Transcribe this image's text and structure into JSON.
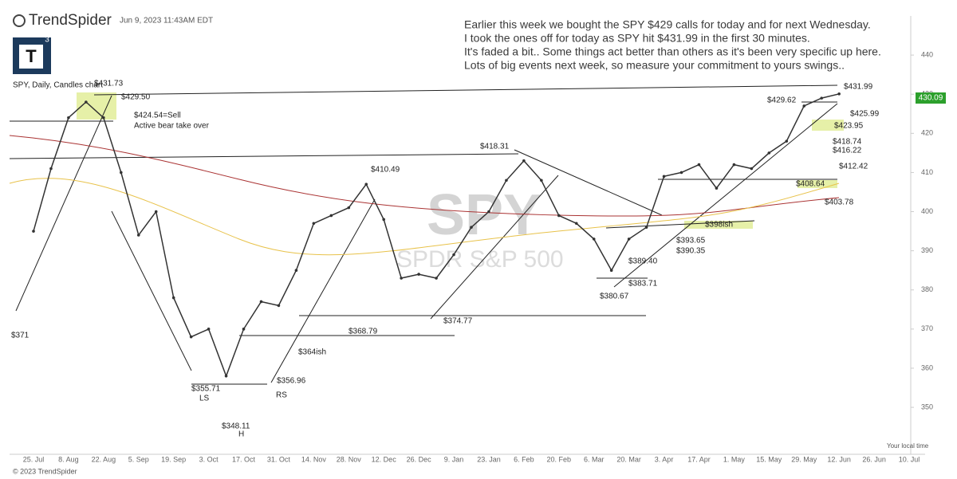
{
  "header": {
    "brand": "TrendSpider",
    "timestamp": "Jun 9, 2023 11:43AM EDT",
    "logo": "T",
    "logo_badge": "3"
  },
  "commentary": [
    "Earlier this week we bought the SPY $429 calls for today and for next Wednesday.",
    "I took the ones off for today as SPY hit $431.99 in the first 30 minutes.",
    "It's faded a bit.. Some things act better than others as it's been very specific up here.",
    "Lots of big events next week, so measure your commitment to yours swings.."
  ],
  "footer": {
    "copyright": "© 2023 TrendSpider",
    "timezone": "Your local time"
  },
  "chart_data": {
    "type": "line",
    "title": "SPY, Daily, Candles chart",
    "watermark": "SPY",
    "watermark_subtitle": "SPDR S&P 500",
    "categories": [
      "25. Jul",
      null,
      "8. Aug",
      null,
      "22. Aug",
      null,
      "5. Sep",
      null,
      "19. Sep",
      null,
      "3. Oct",
      null,
      "17. Oct",
      null,
      "31. Oct",
      null,
      "14. Nov",
      null,
      "28. Nov",
      null,
      "12. Dec",
      null,
      "26. Dec",
      null,
      "9. Jan",
      null,
      "23. Jan",
      null,
      "6. Feb",
      null,
      "20. Feb",
      null,
      "6. Mar",
      null,
      "20. Mar",
      null,
      "3. Apr",
      null,
      "17. Apr",
      null,
      "1. May",
      null,
      "15. May",
      null,
      "29. May",
      null,
      "12. Jun",
      null,
      "26. Jun",
      null,
      "10. Jul"
    ],
    "series": [
      {
        "name": "SPY",
        "color": "#333333",
        "values": [
          395,
          411,
          424,
          428,
          424,
          410,
          394,
          400,
          378,
          368,
          370,
          358,
          370,
          377,
          376,
          385,
          397,
          399,
          401,
          407,
          398,
          383,
          384,
          383,
          389,
          396,
          400,
          408,
          413,
          408,
          399,
          397,
          393,
          385,
          393,
          396,
          409,
          410,
          412,
          406,
          412,
          411,
          415,
          418,
          427,
          429,
          430.09,
          null,
          null,
          null,
          null
        ]
      }
    ],
    "ylim": [
      338,
      450
    ],
    "yticks": [
      350,
      360,
      370,
      380,
      390,
      400,
      410,
      420,
      430,
      440
    ],
    "grid": false,
    "annotations": [
      "$431.73",
      "$429.50",
      "$424.54=Sell",
      "Active bear take over",
      "$371",
      "$355.71",
      "LS",
      "$348.11",
      "H",
      "$356.96",
      "RS",
      "$364ish",
      "$368.79",
      "$410.49",
      "$374.77",
      "$418.31",
      "$380.67",
      "$383.71",
      "$389.40",
      "$390.35",
      "$393.65",
      "$398ish",
      "$403.78",
      "$408.64",
      "$412.42",
      "$416.22",
      "$418.74",
      "$423.95",
      "$425.99",
      "$429.62",
      "$431.99"
    ]
  }
}
